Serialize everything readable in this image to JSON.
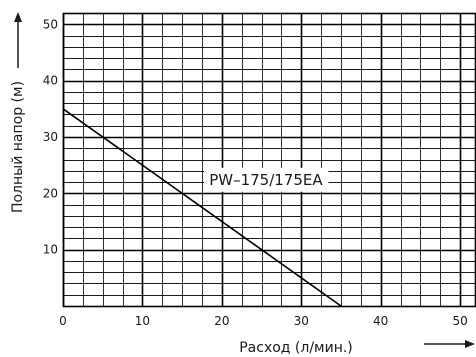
{
  "chart_data": {
    "type": "line",
    "title": "",
    "xlabel": "Расход (л/мин.)",
    "ylabel": "Полный напор (м)",
    "xlim": [
      0,
      52
    ],
    "ylim": [
      0,
      52
    ],
    "x_ticks": [
      0,
      10,
      20,
      30,
      40,
      50
    ],
    "y_ticks": [
      10,
      20,
      30,
      40,
      50
    ],
    "x_minor_step": 2.5,
    "y_minor_step": 2,
    "grid": true,
    "series": [
      {
        "name": "PW–175/175EA",
        "x": [
          0,
          35
        ],
        "y": [
          35,
          0
        ]
      }
    ]
  }
}
